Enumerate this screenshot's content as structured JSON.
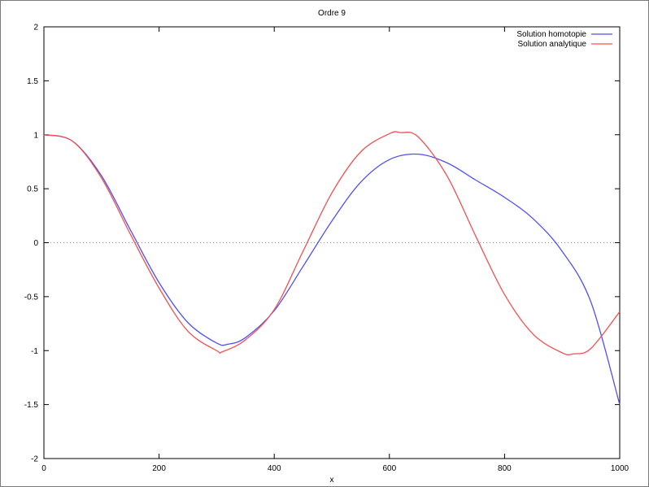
{
  "chart_data": {
    "type": "line",
    "title": "Ordre 9",
    "xlabel": "x",
    "ylabel": "",
    "xlim": [
      0,
      1000
    ],
    "ylim": [
      -2,
      2
    ],
    "x_ticks": [
      "0",
      "200",
      "400",
      "600",
      "800",
      "1000"
    ],
    "y_ticks": [
      "2",
      "1.5",
      "1",
      "0.5",
      "0",
      "-0.5",
      "-1",
      "-1.5",
      "-2"
    ],
    "legend_position": "top-right",
    "zero_line": true,
    "series": [
      {
        "name": "Solution homotopie",
        "color": "#5050f0",
        "points": [
          [
            0,
            1
          ],
          [
            50,
            0.94
          ],
          [
            100,
            0.62
          ],
          [
            150,
            0.12
          ],
          [
            200,
            -0.37
          ],
          [
            250,
            -0.74
          ],
          [
            300,
            -0.93
          ],
          [
            320,
            -0.94
          ],
          [
            350,
            -0.88
          ],
          [
            400,
            -0.63
          ],
          [
            450,
            -0.22
          ],
          [
            500,
            0.2
          ],
          [
            550,
            0.56
          ],
          [
            600,
            0.77
          ],
          [
            650,
            0.82
          ],
          [
            700,
            0.74
          ],
          [
            750,
            0.58
          ],
          [
            800,
            0.42
          ],
          [
            850,
            0.22
          ],
          [
            900,
            -0.08
          ],
          [
            950,
            -0.55
          ],
          [
            1000,
            -1.5
          ]
        ]
      },
      {
        "name": "Solution analytique",
        "color": "#f05050",
        "points": [
          [
            0,
            1
          ],
          [
            50,
            0.94
          ],
          [
            100,
            0.6
          ],
          [
            150,
            0.08
          ],
          [
            200,
            -0.42
          ],
          [
            250,
            -0.82
          ],
          [
            300,
            -1.0
          ],
          [
            310,
            -1.01
          ],
          [
            350,
            -0.9
          ],
          [
            400,
            -0.62
          ],
          [
            450,
            -0.08
          ],
          [
            500,
            0.46
          ],
          [
            550,
            0.84
          ],
          [
            600,
            1.01
          ],
          [
            620,
            1.02
          ],
          [
            650,
            0.98
          ],
          [
            700,
            0.62
          ],
          [
            750,
            0.06
          ],
          [
            800,
            -0.48
          ],
          [
            850,
            -0.85
          ],
          [
            900,
            -1.02
          ],
          [
            920,
            -1.03
          ],
          [
            950,
            -0.98
          ],
          [
            1000,
            -0.64
          ]
        ]
      }
    ]
  }
}
